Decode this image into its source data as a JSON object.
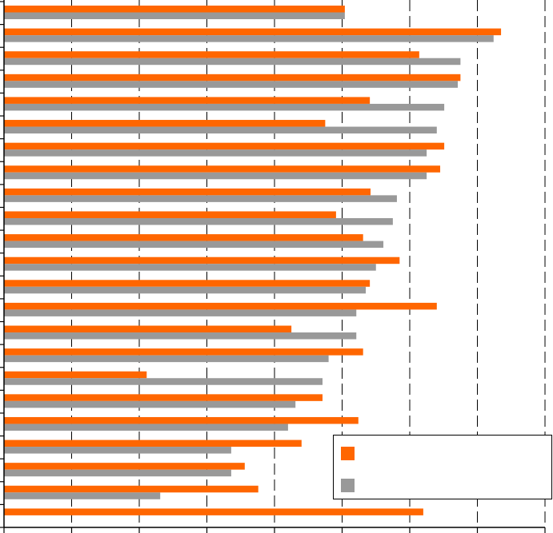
{
  "chart_data": {
    "type": "bar",
    "orientation": "horizontal",
    "title": "",
    "xlabel": "",
    "ylabel": "",
    "xlim": [
      0,
      8
    ],
    "grid": "vertical dashed",
    "legend": "bottom-right",
    "colors": [
      "#ff6600",
      "#999999"
    ],
    "series": [
      {
        "values": [
          5.04,
          7.35,
          6.14,
          6.75,
          5.41,
          4.75,
          6.51,
          6.45,
          5.42,
          4.91,
          5.31,
          5.85,
          5.41,
          6.4,
          4.25,
          5.31,
          2.11,
          4.71,
          5.24,
          4.4,
          3.56,
          3.76,
          6.2
        ]
      },
      {
        "values": [
          5.04,
          7.24,
          6.75,
          6.71,
          6.51,
          6.4,
          6.25,
          6.25,
          5.81,
          5.75,
          5.61,
          5.5,
          5.35,
          5.21,
          5.21,
          4.8,
          4.71,
          4.31,
          4.2,
          3.36,
          3.36,
          2.31,
          null
        ]
      }
    ]
  }
}
